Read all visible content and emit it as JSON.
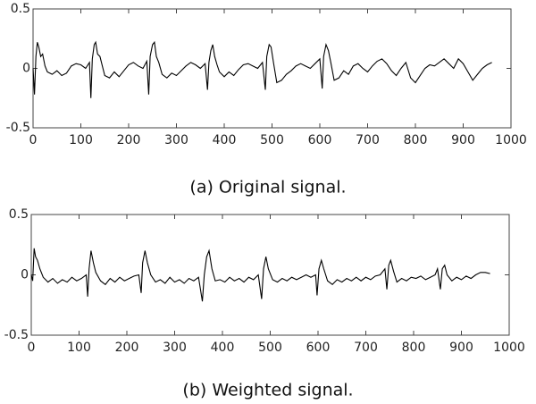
{
  "chart_data": [
    {
      "type": "line",
      "caption": "(a) Original signal.",
      "color": "#000000",
      "xlim": [
        0,
        1000
      ],
      "xticks": [
        0,
        100,
        200,
        300,
        400,
        500,
        600,
        700,
        800,
        900,
        1000
      ],
      "ylim": [
        -0.5,
        0.5
      ],
      "yticks": [
        0.5,
        0,
        -0.5
      ],
      "x": [
        0,
        3,
        6,
        9,
        12,
        16,
        20,
        25,
        30,
        40,
        50,
        60,
        70,
        80,
        90,
        100,
        110,
        118,
        121,
        124,
        128,
        131,
        135,
        140,
        145,
        150,
        160,
        170,
        180,
        190,
        200,
        210,
        220,
        230,
        238,
        242,
        245,
        250,
        254,
        258,
        263,
        270,
        280,
        290,
        300,
        310,
        320,
        330,
        340,
        350,
        360,
        365,
        368,
        372,
        376,
        380,
        385,
        390,
        400,
        410,
        420,
        430,
        440,
        450,
        460,
        470,
        480,
        486,
        489,
        494,
        498,
        503,
        510,
        520,
        530,
        540,
        550,
        560,
        570,
        580,
        590,
        600,
        605,
        608,
        613,
        618,
        623,
        630,
        640,
        650,
        660,
        670,
        680,
        690,
        700,
        710,
        720,
        730,
        740,
        750,
        760,
        770,
        780,
        790,
        800,
        810,
        820,
        830,
        840,
        850,
        860,
        870,
        880,
        890,
        900,
        910,
        920,
        930,
        940,
        950,
        960
      ],
      "values": [
        0,
        -0.22,
        0.1,
        0.22,
        0.18,
        0.1,
        0.12,
        0.02,
        -0.03,
        -0.05,
        -0.02,
        -0.06,
        -0.04,
        0.02,
        0.04,
        0.03,
        0,
        0.05,
        -0.25,
        0.08,
        0.2,
        0.22,
        0.12,
        0.1,
        0.02,
        -0.06,
        -0.08,
        -0.03,
        -0.07,
        -0.02,
        0.03,
        0.05,
        0.02,
        0,
        0.06,
        -0.22,
        0.1,
        0.2,
        0.22,
        0.1,
        0.05,
        -0.05,
        -0.08,
        -0.04,
        -0.06,
        -0.02,
        0.02,
        0.05,
        0.03,
        0,
        0.04,
        -0.18,
        0.05,
        0.15,
        0.2,
        0.1,
        0.03,
        -0.03,
        -0.07,
        -0.03,
        -0.06,
        -0.01,
        0.03,
        0.04,
        0.02,
        0,
        0.05,
        -0.18,
        0.1,
        0.2,
        0.18,
        0.05,
        -0.12,
        -0.1,
        -0.05,
        -0.02,
        0.02,
        0.04,
        0.02,
        0,
        0.04,
        0.08,
        -0.17,
        0.1,
        0.2,
        0.15,
        0.05,
        -0.1,
        -0.08,
        -0.02,
        -0.05,
        0.02,
        0.04,
        0,
        -0.03,
        0.02,
        0.06,
        0.08,
        0.04,
        -0.02,
        -0.06,
        0,
        0.05,
        -0.08,
        -0.12,
        -0.06,
        0,
        0.03,
        0.02,
        0.05,
        0.08,
        0.04,
        0,
        0.08,
        0.04,
        -0.03,
        -0.1,
        -0.05,
        0,
        0.03,
        0.05
      ]
    },
    {
      "type": "line",
      "caption": "(b) Weighted signal.",
      "color": "#000000",
      "xlim": [
        0,
        1000
      ],
      "xticks": [
        0,
        100,
        200,
        300,
        400,
        500,
        600,
        700,
        800,
        900,
        1000
      ],
      "ylim": [
        -0.5,
        0.5
      ],
      "yticks": [
        0.5,
        0,
        -0.5
      ],
      "x": [
        0,
        3,
        6,
        9,
        13,
        18,
        25,
        35,
        45,
        55,
        65,
        75,
        85,
        95,
        105,
        115,
        118,
        121,
        125,
        130,
        135,
        145,
        155,
        165,
        175,
        185,
        195,
        205,
        215,
        225,
        230,
        233,
        238,
        243,
        250,
        260,
        270,
        280,
        290,
        300,
        310,
        320,
        330,
        340,
        350,
        358,
        362,
        367,
        372,
        378,
        385,
        395,
        405,
        415,
        425,
        435,
        445,
        455,
        465,
        475,
        482,
        486,
        491,
        496,
        505,
        515,
        525,
        535,
        545,
        555,
        565,
        575,
        585,
        595,
        598,
        602,
        607,
        612,
        620,
        630,
        640,
        650,
        660,
        670,
        680,
        690,
        700,
        710,
        720,
        730,
        740,
        744,
        748,
        752,
        758,
        765,
        775,
        785,
        795,
        805,
        815,
        825,
        835,
        845,
        850,
        856,
        860,
        865,
        870,
        880,
        890,
        900,
        910,
        920,
        930,
        940,
        950,
        960
      ],
      "values": [
        0,
        -0.05,
        0.22,
        0.15,
        0.12,
        0.05,
        -0.02,
        -0.06,
        -0.03,
        -0.07,
        -0.04,
        -0.06,
        -0.02,
        -0.05,
        -0.03,
        0,
        -0.18,
        0.05,
        0.2,
        0.1,
        0.02,
        -0.05,
        -0.08,
        -0.03,
        -0.06,
        -0.02,
        -0.05,
        -0.03,
        -0.01,
        0,
        -0.15,
        0.1,
        0.2,
        0.1,
        0,
        -0.06,
        -0.04,
        -0.07,
        -0.02,
        -0.06,
        -0.04,
        -0.07,
        -0.03,
        -0.05,
        -0.02,
        -0.22,
        0,
        0.15,
        0.2,
        0.05,
        -0.05,
        -0.04,
        -0.06,
        -0.02,
        -0.05,
        -0.03,
        -0.06,
        -0.02,
        -0.04,
        0,
        -0.2,
        0.05,
        0.15,
        0.05,
        -0.04,
        -0.06,
        -0.03,
        -0.05,
        -0.02,
        -0.04,
        -0.02,
        0,
        -0.02,
        0,
        -0.17,
        0.05,
        0.12,
        0.05,
        -0.05,
        -0.08,
        -0.04,
        -0.06,
        -0.03,
        -0.05,
        -0.02,
        -0.05,
        -0.02,
        -0.04,
        -0.01,
        0,
        0.05,
        -0.12,
        0.08,
        0.12,
        0.03,
        -0.06,
        -0.03,
        -0.05,
        -0.02,
        -0.03,
        -0.01,
        -0.04,
        -0.02,
        0,
        0.05,
        -0.12,
        0.05,
        0.08,
        0,
        -0.05,
        -0.02,
        -0.04,
        -0.01,
        -0.03,
        0,
        0.02,
        0.02,
        0.01
      ]
    }
  ]
}
